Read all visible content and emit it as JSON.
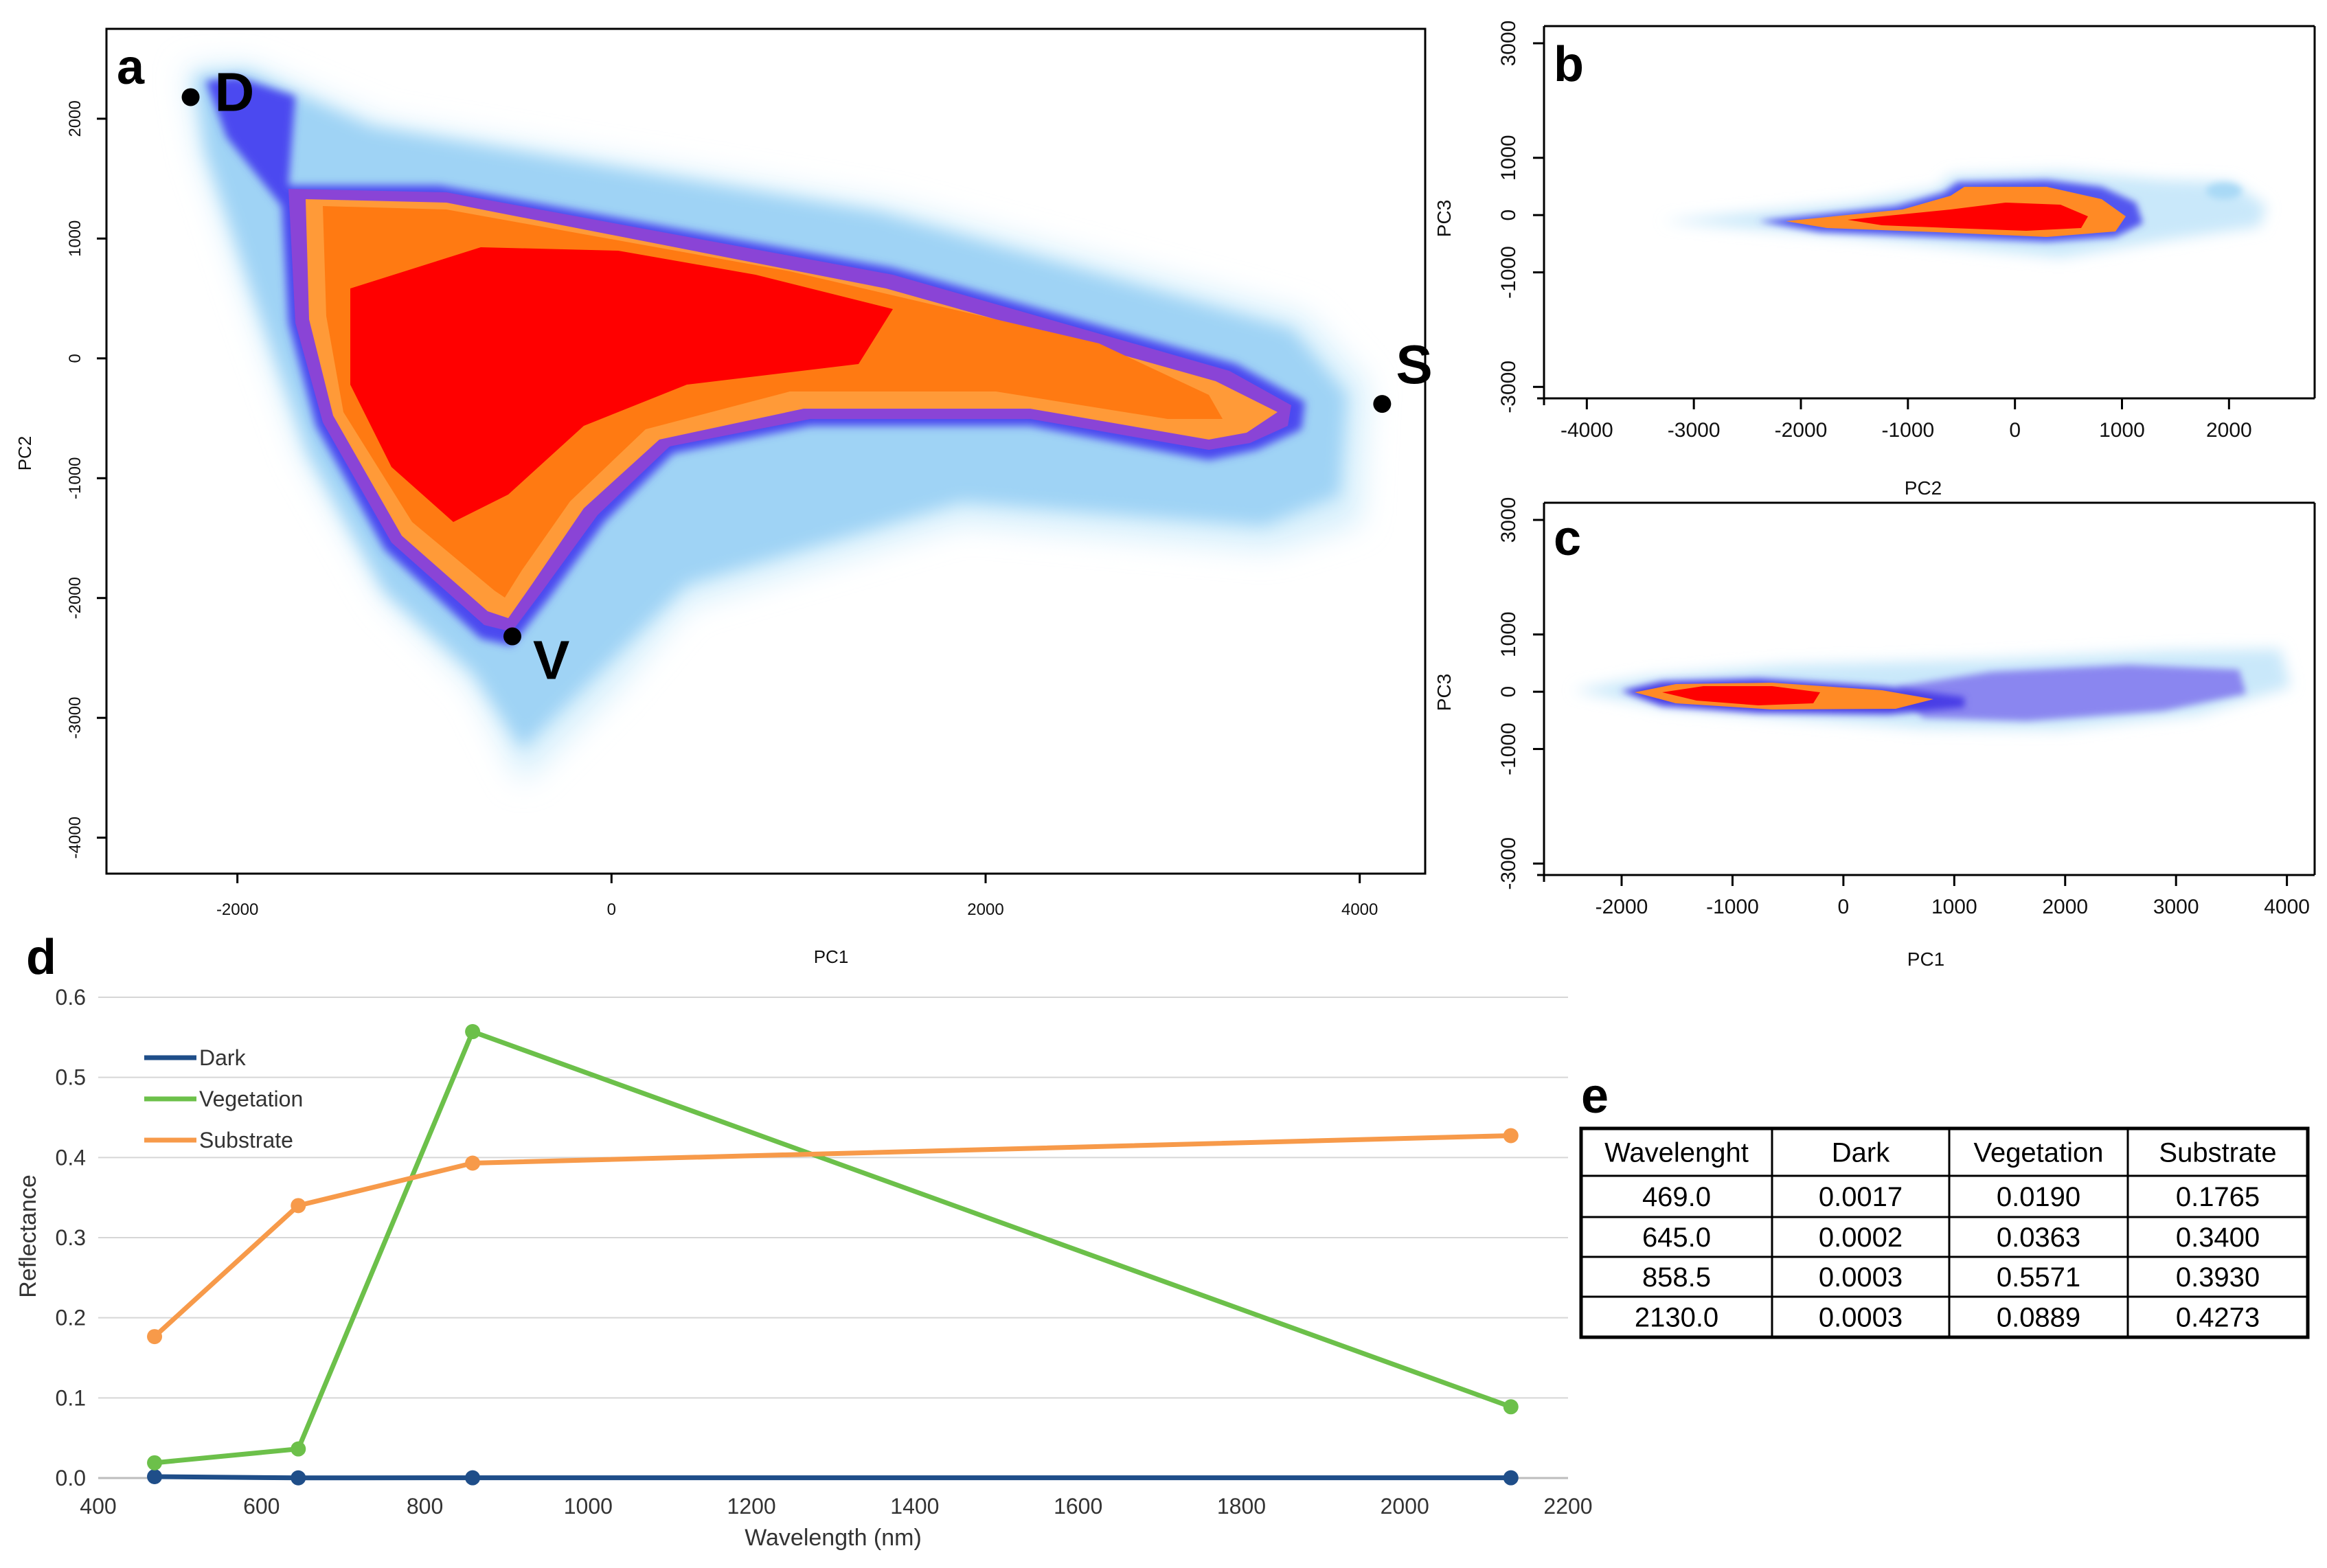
{
  "colors": {
    "density": [
      "#ffffff",
      "#bfe7fb",
      "#7fc6f2",
      "#5566f0",
      "#3a14e0",
      "#8040d8",
      "#ff9a38",
      "#ff7a10",
      "#ff0000"
    ],
    "dark": "#1f4e89",
    "vegetation": "#6cc04a",
    "substrate": "#f79a4a"
  },
  "panels": {
    "a": {
      "letter": "a",
      "xlabel": "PC1",
      "ylabel": "PC2",
      "xlim": [
        -2700,
        4350
      ],
      "ylim": [
        -4300,
        2750
      ],
      "xticks": [
        "-2000",
        "0",
        "2000",
        "4000"
      ],
      "xtick_values": [
        -2000,
        0,
        2000,
        4000
      ],
      "yticks": [
        "2000",
        "1000",
        "0",
        "-1000",
        "-2000",
        "-3000",
        "-4000"
      ],
      "ytick_values": [
        2000,
        1000,
        0,
        -1000,
        -2000,
        -3000,
        -4000
      ],
      "endmembers": [
        {
          "label": "D",
          "x": -2250,
          "y": 2180
        },
        {
          "label": "S",
          "x": 4120,
          "y": -380
        },
        {
          "label": "V",
          "x": -530,
          "y": -2320
        }
      ]
    },
    "b": {
      "letter": "b",
      "xlabel": "PC2",
      "ylabel": "PC3",
      "xlim": [
        -4400,
        2800
      ],
      "ylim": [
        -3200,
        3300
      ],
      "xticks": [
        "-4000",
        "-3000",
        "-2000",
        "-1000",
        "0",
        "1000",
        "2000"
      ],
      "xtick_values": [
        -4000,
        -3000,
        -2000,
        -1000,
        0,
        1000,
        2000
      ],
      "yticks": [
        "3000",
        "1000",
        "0",
        "-1000",
        "-3000"
      ],
      "ytick_values": [
        3000,
        1000,
        0,
        -1000,
        -3000
      ]
    },
    "c": {
      "letter": "c",
      "xlabel": "PC1",
      "ylabel": "PC3",
      "xlim": [
        -2700,
        4250
      ],
      "ylim": [
        -3200,
        3300
      ],
      "xticks": [
        "-2000",
        "-1000",
        "0",
        "1000",
        "2000",
        "3000",
        "4000"
      ],
      "xtick_values": [
        -2000,
        -1000,
        0,
        1000,
        2000,
        3000,
        4000
      ],
      "yticks": [
        "3000",
        "1000",
        "0",
        "-1000",
        "-3000"
      ],
      "ytick_values": [
        3000,
        1000,
        0,
        -1000,
        -3000
      ]
    }
  },
  "chart_data": [
    {
      "id": "a",
      "type": "heatmap",
      "title": "",
      "xlabel": "PC1",
      "ylabel": "PC2",
      "xlim": [
        -2700,
        4350
      ],
      "ylim": [
        -4300,
        2750
      ],
      "description_points": [
        {
          "label": "D",
          "x": -2250,
          "y": 2180
        },
        {
          "label": "S",
          "x": 4120,
          "y": -380
        },
        {
          "label": "V",
          "x": -530,
          "y": -2320
        }
      ]
    },
    {
      "id": "b",
      "type": "heatmap",
      "xlabel": "PC2",
      "ylabel": "PC3",
      "xlim": [
        -4400,
        2800
      ],
      "ylim": [
        -3200,
        3300
      ]
    },
    {
      "id": "c",
      "type": "heatmap",
      "xlabel": "PC1",
      "ylabel": "PC3",
      "xlim": [
        -2700,
        4250
      ],
      "ylim": [
        -3200,
        3300
      ]
    },
    {
      "id": "d",
      "type": "line",
      "letter": "d",
      "xlabel": "Wavelength (nm)",
      "ylabel": "Reflectance",
      "xlim": [
        400,
        2200
      ],
      "ylim": [
        0,
        0.6
      ],
      "xticks": [
        "400",
        "600",
        "800",
        "1000",
        "1200",
        "1400",
        "1600",
        "1800",
        "2000",
        "2200"
      ],
      "xtick_values": [
        400,
        600,
        800,
        1000,
        1200,
        1400,
        1600,
        1800,
        2000,
        2200
      ],
      "yticks": [
        "0.0",
        "0.1",
        "0.2",
        "0.3",
        "0.4",
        "0.5",
        "0.6"
      ],
      "ytick_values": [
        0,
        0.1,
        0.2,
        0.3,
        0.4,
        0.5,
        0.6
      ],
      "x": [
        469.0,
        645.0,
        858.5,
        2130.0
      ],
      "series": [
        {
          "name": "Dark",
          "color": "#1f4e89",
          "values": [
            0.0017,
            0.0002,
            0.0003,
            0.0003
          ]
        },
        {
          "name": "Vegetation",
          "color": "#6cc04a",
          "values": [
            0.019,
            0.0363,
            0.5571,
            0.0889
          ]
        },
        {
          "name": "Substrate",
          "color": "#f79a4a",
          "values": [
            0.1765,
            0.34,
            0.393,
            0.4273
          ]
        }
      ],
      "legend": "top-left"
    },
    {
      "id": "e",
      "type": "table",
      "letter": "e",
      "columns": [
        "Wavelenght",
        "Dark",
        "Vegetation",
        "Substrate"
      ],
      "rows": [
        [
          "469.0",
          "0.0017",
          "0.0190",
          "0.1765"
        ],
        [
          "645.0",
          "0.0002",
          "0.0363",
          "0.3400"
        ],
        [
          "858.5",
          "0.0003",
          "0.5571",
          "0.3930"
        ],
        [
          "2130.0",
          "0.0003",
          "0.0889",
          "0.4273"
        ]
      ]
    }
  ]
}
